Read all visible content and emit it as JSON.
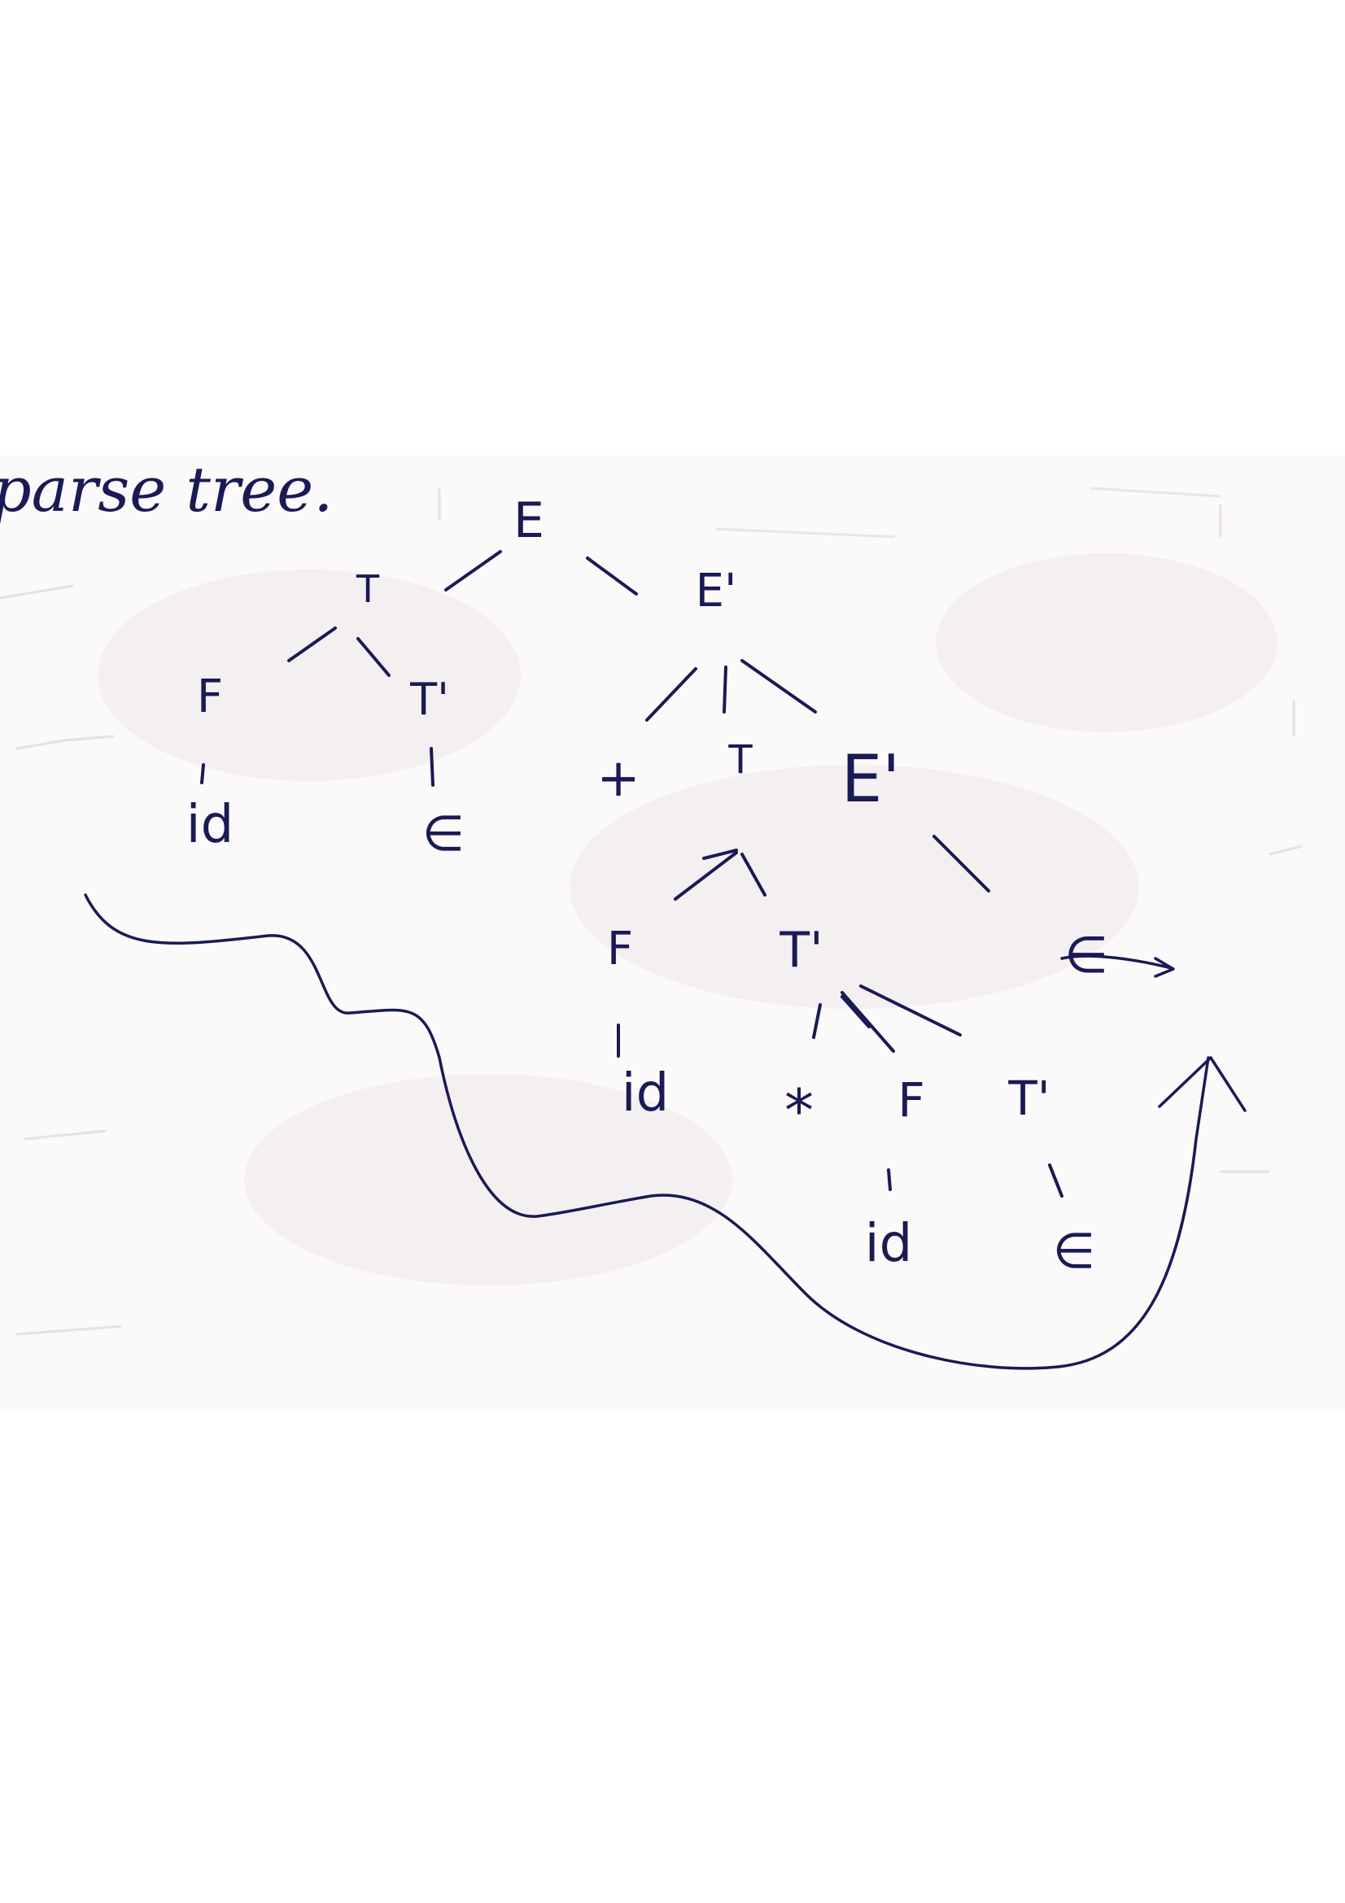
{
  "heading": "parse tree.",
  "tree": {
    "nodes": [
      {
        "id": "E_root",
        "label": "E"
      },
      {
        "id": "T_1",
        "label": "T"
      },
      {
        "id": "E_prime_1",
        "label": "E'"
      },
      {
        "id": "F_1",
        "label": "F"
      },
      {
        "id": "T_prime_1",
        "label": "T'"
      },
      {
        "id": "id_1",
        "label": "id"
      },
      {
        "id": "eps_1",
        "label": "∈"
      },
      {
        "id": "plus",
        "label": "+"
      },
      {
        "id": "T_2",
        "label": "T"
      },
      {
        "id": "E_prime_2",
        "label": "E'"
      },
      {
        "id": "F_2",
        "label": "F"
      },
      {
        "id": "T_prime_2",
        "label": "T'"
      },
      {
        "id": "eps_2",
        "label": "∈"
      },
      {
        "id": "id_2",
        "label": "id"
      },
      {
        "id": "star",
        "label": "*"
      },
      {
        "id": "F_3",
        "label": "F"
      },
      {
        "id": "T_prime_3",
        "label": "T'"
      },
      {
        "id": "id_3",
        "label": "id"
      },
      {
        "id": "eps_3",
        "label": "∈"
      }
    ],
    "edges": [
      [
        "E_root",
        "T_1"
      ],
      [
        "E_root",
        "E_prime_1"
      ],
      [
        "T_1",
        "F_1"
      ],
      [
        "T_1",
        "T_prime_1"
      ],
      [
        "F_1",
        "id_1"
      ],
      [
        "T_prime_1",
        "eps_1"
      ],
      [
        "E_prime_1",
        "plus"
      ],
      [
        "E_prime_1",
        "T_2"
      ],
      [
        "E_prime_1",
        "E_prime_2"
      ],
      [
        "T_2",
        "F_2"
      ],
      [
        "T_2",
        "T_prime_2"
      ],
      [
        "E_prime_2",
        "eps_2"
      ],
      [
        "F_2",
        "id_2"
      ],
      [
        "T_prime_2",
        "star"
      ],
      [
        "T_prime_2",
        "F_3"
      ],
      [
        "T_prime_2",
        "T_prime_3"
      ],
      [
        "F_3",
        "id_3"
      ],
      [
        "T_prime_3",
        "eps_3"
      ]
    ]
  },
  "colors": {
    "ink": "#1a1a55",
    "paper": "#fbf9fa",
    "background": "#ffffff",
    "bleed_through": "#cfc6cb"
  }
}
